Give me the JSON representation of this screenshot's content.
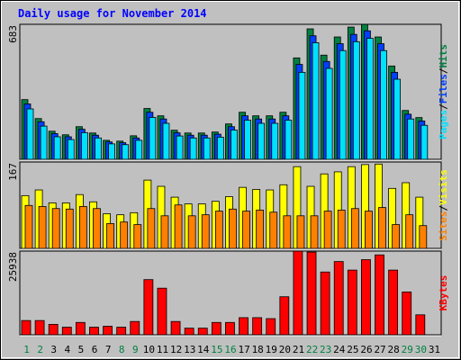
{
  "separator": "/",
  "chart_data": [
    {
      "type": "bar",
      "title": "Daily usage for November 2014",
      "ylim": [
        0,
        683
      ],
      "yticks": [
        683
      ],
      "series": [
        {
          "name": "Hits",
          "color": "#008040",
          "values": [
            302,
            206,
            142,
            124,
            165,
            133,
            96,
            92,
            119,
            257,
            220,
            147,
            133,
            133,
            138,
            179,
            238,
            220,
            220,
            238,
            513,
            660,
            527,
            619,
            669,
            683,
            619,
            472,
            247,
            211,
            0
          ]
        },
        {
          "name": "Files",
          "color": "#0040ff",
          "values": [
            280,
            190,
            130,
            114,
            152,
            122,
            88,
            84,
            108,
            238,
            204,
            134,
            122,
            122,
            127,
            165,
            220,
            204,
            204,
            220,
            480,
            625,
            495,
            585,
            632,
            650,
            585,
            440,
            228,
            194,
            0
          ]
        },
        {
          "name": "Pages",
          "color": "#00e0ff",
          "values": [
            255,
            168,
            114,
            100,
            135,
            108,
            78,
            74,
            96,
            212,
            182,
            118,
            108,
            108,
            112,
            148,
            198,
            182,
            182,
            198,
            440,
            590,
            460,
            550,
            595,
            612,
            550,
            405,
            204,
            172,
            0
          ]
        }
      ]
    },
    {
      "type": "bar",
      "ylim": [
        0,
        167
      ],
      "yticks": [
        167
      ],
      "series": [
        {
          "name": "Visits",
          "color": "#ffff00",
          "values": [
            102,
            113,
            88,
            88,
            104,
            90,
            67,
            65,
            69,
            132,
            120,
            99,
            86,
            86,
            91,
            100,
            118,
            114,
            113,
            123,
            158,
            120,
            144,
            148,
            158,
            162,
            163,
            116,
            127,
            99,
            0
          ]
        },
        {
          "name": "Sites",
          "color": "#ff8000",
          "values": [
            83,
            81,
            77,
            76,
            81,
            77,
            48,
            51,
            46,
            77,
            63,
            84,
            63,
            65,
            72,
            76,
            72,
            74,
            70,
            63,
            63,
            63,
            72,
            74,
            77,
            72,
            79,
            46,
            65,
            44,
            0
          ]
        }
      ]
    },
    {
      "type": "bar",
      "ylim": [
        0,
        25938
      ],
      "yticks": [
        25938
      ],
      "series": [
        {
          "name": "KBytes",
          "color": "#ff0000",
          "values": [
            4420,
            4420,
            3240,
            2360,
            3830,
            2360,
            2650,
            2360,
            4130,
            17100,
            14450,
            4130,
            2060,
            2060,
            3830,
            3830,
            5310,
            5310,
            5010,
            11790,
            25938,
            25640,
            19460,
            22700,
            20050,
            23290,
            24760,
            20050,
            13270,
            6190,
            0
          ]
        }
      ],
      "categories": [
        "1",
        "2",
        "3",
        "4",
        "5",
        "6",
        "7",
        "8",
        "9",
        "10",
        "11",
        "12",
        "13",
        "14",
        "15",
        "16",
        "17",
        "18",
        "19",
        "20",
        "21",
        "22",
        "23",
        "24",
        "25",
        "26",
        "27",
        "28",
        "29",
        "30",
        "31"
      ],
      "category_colors": [
        "#008040",
        "#008040",
        "#000000",
        "#000000",
        "#000000",
        "#000000",
        "#000000",
        "#008040",
        "#008040",
        "#000000",
        "#000000",
        "#000000",
        "#000000",
        "#000000",
        "#008040",
        "#008040",
        "#000000",
        "#000000",
        "#000000",
        "#000000",
        "#000000",
        "#008040",
        "#008040",
        "#000000",
        "#000000",
        "#000000",
        "#000000",
        "#000000",
        "#008040",
        "#008040",
        "#000000"
      ]
    }
  ]
}
